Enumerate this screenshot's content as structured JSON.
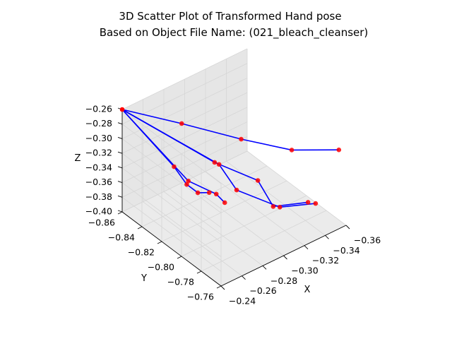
{
  "chart_data": {
    "type": "scatter",
    "projection": "3d",
    "title": "3D Scatter Plot of Transformed Hand pose",
    "subtitle": "Based on Object File Name: (021_bleach_cleanser)",
    "xlabel": "X",
    "ylabel": "Y",
    "zlabel": "Z",
    "xticks": [
      "−0.24",
      "−0.26",
      "−0.28",
      "−0.30",
      "−0.32",
      "−0.34",
      "−0.36"
    ],
    "yticks": [
      "−0.76",
      "−0.78",
      "−0.80",
      "−0.82",
      "−0.84",
      "−0.86"
    ],
    "zticks": [
      "−0.26",
      "−0.28",
      "−0.30",
      "−0.32",
      "−0.34",
      "−0.36",
      "−0.38",
      "−0.40"
    ],
    "grid": true,
    "colors": {
      "points": "#ff0000",
      "lines": "#0000ff",
      "pane_left": "#f2f2f2",
      "pane_right": "#e6e6e6",
      "pane_floor": "#ebebeb",
      "grid": "#d6d6d6"
    },
    "wrist": [
      -0.24,
      -0.86,
      -0.26
    ],
    "fingers": [
      [
        [
          -0.262,
          -0.823,
          -0.257
        ],
        [
          -0.284,
          -0.786,
          -0.256
        ],
        [
          -0.305,
          -0.757,
          -0.256
        ],
        [
          -0.336,
          -0.742,
          -0.262
        ]
      ],
      [
        [
          -0.305,
          -0.835,
          -0.352
        ],
        [
          -0.319,
          -0.806,
          -0.357
        ],
        [
          -0.31,
          -0.781,
          -0.361
        ],
        [
          -0.333,
          -0.77,
          -0.36
        ]
      ],
      [
        [
          -0.314,
          -0.84,
          -0.366
        ],
        [
          -0.31,
          -0.818,
          -0.376
        ],
        [
          -0.323,
          -0.788,
          -0.378
        ],
        [
          -0.345,
          -0.775,
          -0.375
        ]
      ],
      [
        [
          -0.294,
          -0.85,
          -0.385
        ],
        [
          -0.299,
          -0.827,
          -0.383
        ],
        [
          -0.291,
          -0.81,
          -0.372
        ]
      ],
      [
        [
          -0.286,
          -0.856,
          -0.366
        ],
        [
          -0.283,
          -0.84,
          -0.372
        ],
        [
          -0.287,
          -0.833,
          -0.379
        ],
        [
          -0.296,
          -0.831,
          -0.383
        ]
      ]
    ]
  }
}
